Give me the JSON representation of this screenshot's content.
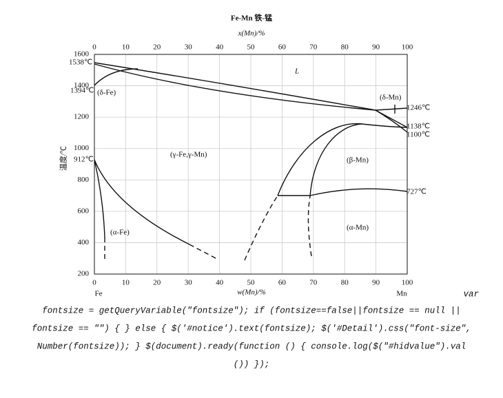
{
  "figure": {
    "title": "Fe-Mn  铁-锰",
    "top_axis_label": "x(Mn)/%",
    "bottom_axis_label": "w(Mn)/%",
    "y_axis_label": "温度/℃",
    "top_ticks": [
      0,
      10,
      20,
      30,
      40,
      50,
      60,
      70,
      80,
      90,
      100
    ],
    "bottom_ticks": [
      0,
      10,
      20,
      30,
      40,
      50,
      60,
      70,
      80,
      90,
      100
    ],
    "y_ticks": [
      200,
      400,
      600,
      800,
      1000,
      1200,
      1400,
      1600
    ],
    "annotations": [
      "1538℃",
      "1394℃",
      "(δ-Fe)",
      "L",
      "(δ-Mn)",
      "1246℃",
      "1138℃",
      "1100℃",
      "(γ-Fe,γ-Mn)",
      "912℃",
      "(β-Mn)",
      "727℃",
      "(α-Mn)",
      "(α-Fe)",
      "Fe",
      "Mn"
    ]
  },
  "code_lines": [
    "var",
    "fontsize = getQueryVariable(\"fontsize\"); if (fontsize==false||fontsize == null ||",
    "fontsize == \"\") { } else { $('#notice').text(fontsize); $('#Detail').css(\"font-size\",",
    "Number(fontsize)); } $(document).ready(function () { console.log($(\"#hidvalue\").val",
    "()) });"
  ]
}
